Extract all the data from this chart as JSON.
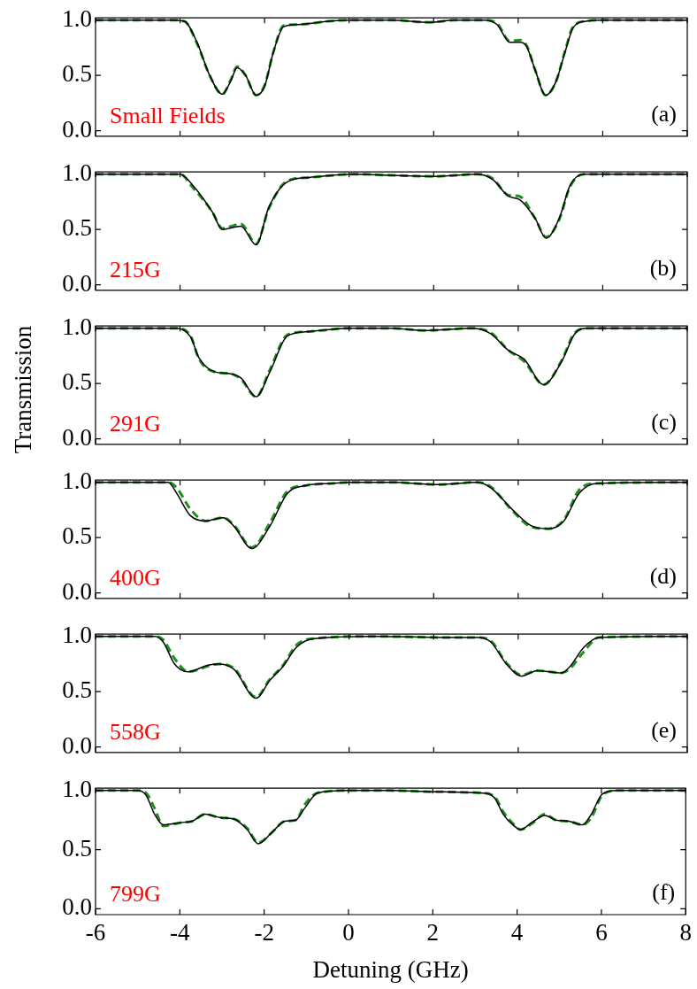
{
  "chart_data": [
    {
      "type": "line",
      "annotations": [
        "Small Fields",
        "(a)"
      ],
      "xlim": [
        -6,
        8
      ],
      "xticks": [
        -6,
        -4,
        -2,
        0,
        2,
        4,
        6,
        8
      ],
      "ylim": [
        -0.05,
        1.02
      ],
      "yticks": [
        {
          "value": 0,
          "label": "0.0"
        },
        {
          "value": 0.5,
          "label": "0.5"
        },
        {
          "value": 1,
          "label": "1.0"
        }
      ],
      "tick_labels": "y",
      "marker": "none",
      "series": [
        {
          "color": "#000000",
          "line_style": "solid",
          "x": [
            -6,
            -4.2,
            -3.9,
            -3.6,
            -3.3,
            -3.0,
            -2.8,
            -2.65,
            -2.45,
            -2.2,
            -2.0,
            -1.8,
            -1.55,
            -1.2,
            -0.5,
            0,
            1,
            1.9,
            2.5,
            3.2,
            3.5,
            3.8,
            4.05,
            4.2,
            4.4,
            4.65,
            4.9,
            5.1,
            5.3,
            5.6,
            6,
            8
          ],
          "values": [
            1,
            1,
            0.99,
            0.8,
            0.5,
            0.33,
            0.45,
            0.57,
            0.5,
            0.32,
            0.4,
            0.7,
            0.94,
            0.96,
            0.99,
            1,
            1,
            0.98,
            1,
            1,
            0.96,
            0.8,
            0.8,
            0.76,
            0.55,
            0.32,
            0.45,
            0.7,
            0.93,
            0.99,
            1,
            1
          ]
        },
        {
          "color": "#1f8f1f",
          "line_style": "dashed",
          "x": [
            -6,
            -4.2,
            -3.9,
            -3.6,
            -3.3,
            -3.0,
            -2.8,
            -2.65,
            -2.45,
            -2.2,
            -2.0,
            -1.8,
            -1.55,
            -1.2,
            -0.5,
            0,
            1,
            1.9,
            2.5,
            3.2,
            3.5,
            3.8,
            4.05,
            4.2,
            4.4,
            4.65,
            4.9,
            5.1,
            5.3,
            5.6,
            6,
            8
          ],
          "values": [
            1,
            1,
            0.99,
            0.79,
            0.5,
            0.33,
            0.46,
            0.58,
            0.5,
            0.32,
            0.41,
            0.7,
            0.95,
            0.96,
            0.99,
            1,
            1,
            0.98,
            1,
            1,
            0.97,
            0.81,
            0.82,
            0.77,
            0.55,
            0.32,
            0.45,
            0.71,
            0.94,
            0.99,
            1,
            1
          ]
        }
      ]
    },
    {
      "type": "line",
      "annotations": [
        "215G",
        "(b)"
      ],
      "xlim": [
        -6,
        8
      ],
      "xticks": [
        -6,
        -4,
        -2,
        0,
        2,
        4,
        6,
        8
      ],
      "ylim": [
        -0.05,
        1.02
      ],
      "yticks": [
        {
          "value": 0,
          "label": "0.0"
        },
        {
          "value": 0.5,
          "label": "0.5"
        },
        {
          "value": 1,
          "label": "1.0"
        }
      ],
      "tick_labels": "y",
      "marker": "none",
      "series": [
        {
          "color": "#000000",
          "line_style": "solid",
          "x": [
            -6,
            -4.0,
            -3.7,
            -3.24,
            -3.0,
            -2.56,
            -2.2,
            -1.9,
            -1.46,
            -0.94,
            0.1,
            1,
            2,
            3.04,
            3.4,
            3.77,
            4.03,
            4.4,
            4.66,
            4.97,
            5.23,
            5.55,
            6,
            8
          ],
          "values": [
            1,
            1,
            0.9,
            0.66,
            0.5,
            0.53,
            0.36,
            0.7,
            0.93,
            0.97,
            1,
            0.99,
            0.98,
            1,
            0.95,
            0.8,
            0.77,
            0.6,
            0.42,
            0.6,
            0.9,
            1,
            1,
            1
          ]
        },
        {
          "color": "#1f8f1f",
          "line_style": "dashed",
          "x": [
            -6,
            -4.0,
            -3.7,
            -3.24,
            -3.0,
            -2.56,
            -2.2,
            -1.9,
            -1.46,
            -0.94,
            0.1,
            1,
            2,
            3.04,
            3.4,
            3.77,
            4.03,
            4.4,
            4.66,
            4.97,
            5.23,
            5.55,
            6,
            8
          ],
          "values": [
            1,
            1,
            0.88,
            0.66,
            0.51,
            0.55,
            0.37,
            0.69,
            0.94,
            0.97,
            1,
            0.99,
            0.98,
            1,
            0.96,
            0.81,
            0.8,
            0.6,
            0.43,
            0.59,
            0.89,
            1,
            1,
            1
          ]
        }
      ]
    },
    {
      "type": "line",
      "annotations": [
        "291G",
        "(c)"
      ],
      "ylabel": "Transmission",
      "xlim": [
        -6,
        8
      ],
      "xticks": [
        -6,
        -4,
        -2,
        0,
        2,
        4,
        6,
        8
      ],
      "ylim": [
        -0.05,
        1.02
      ],
      "yticks": [
        {
          "value": 0,
          "label": "0.0"
        },
        {
          "value": 0.5,
          "label": "0.5"
        },
        {
          "value": 1,
          "label": "1.0"
        }
      ],
      "tick_labels": "y",
      "marker": "none",
      "series": [
        {
          "color": "#000000",
          "line_style": "solid",
          "x": [
            -6,
            -4.08,
            -3.75,
            -3.55,
            -3.13,
            -2.82,
            -2.56,
            -2.2,
            -1.88,
            -1.46,
            -0.94,
            0,
            1,
            1.78,
            2.93,
            3.35,
            3.77,
            4.14,
            4.6,
            5.03,
            5.34,
            5.65,
            6,
            8
          ],
          "values": [
            1,
            1,
            0.92,
            0.73,
            0.6,
            0.59,
            0.55,
            0.38,
            0.6,
            0.93,
            0.97,
            1,
            1,
            0.98,
            1,
            0.95,
            0.8,
            0.72,
            0.49,
            0.7,
            0.95,
            1,
            1,
            1
          ]
        },
        {
          "color": "#1f8f1f",
          "line_style": "dashed",
          "x": [
            -6,
            -4.08,
            -3.75,
            -3.55,
            -3.13,
            -2.82,
            -2.56,
            -2.2,
            -1.88,
            -1.46,
            -0.94,
            0,
            1,
            1.78,
            2.93,
            3.35,
            3.77,
            4.14,
            4.6,
            5.03,
            5.34,
            5.65,
            6,
            8
          ],
          "values": [
            1,
            1,
            0.93,
            0.72,
            0.6,
            0.59,
            0.54,
            0.38,
            0.62,
            0.94,
            0.97,
            1,
            1,
            0.98,
            1,
            0.96,
            0.8,
            0.7,
            0.49,
            0.71,
            0.96,
            1,
            1,
            1
          ]
        }
      ]
    },
    {
      "type": "line",
      "annotations": [
        "400G",
        "(d)"
      ],
      "xlim": [
        -6,
        8
      ],
      "xticks": [
        -6,
        -4,
        -2,
        0,
        2,
        4,
        6,
        8
      ],
      "ylim": [
        -0.05,
        1.02
      ],
      "yticks": [
        {
          "value": 0,
          "label": "0.0"
        },
        {
          "value": 0.5,
          "label": "0.5"
        },
        {
          "value": 1,
          "label": "1.0"
        }
      ],
      "tick_labels": "y",
      "marker": "none",
      "series": [
        {
          "color": "#000000",
          "line_style": "solid",
          "x": [
            -6,
            -4.28,
            -4.08,
            -3.76,
            -3.4,
            -2.98,
            -2.72,
            -2.3,
            -1.88,
            -1.46,
            -1.04,
            -0.4,
            0.1,
            1,
            2.1,
            3.04,
            3.35,
            3.87,
            4.29,
            4.71,
            5.08,
            5.44,
            5.86,
            8
          ],
          "values": [
            1,
            1,
            0.9,
            0.7,
            0.65,
            0.68,
            0.6,
            0.4,
            0.6,
            0.9,
            0.97,
            0.99,
            1,
            1,
            0.98,
            1,
            0.95,
            0.75,
            0.61,
            0.58,
            0.65,
            0.9,
            0.99,
            1
          ]
        },
        {
          "color": "#1f8f1f",
          "line_style": "dashed",
          "x": [
            -6,
            -4.28,
            -4.08,
            -3.76,
            -3.4,
            -2.98,
            -2.72,
            -2.3,
            -1.88,
            -1.46,
            -1.04,
            -0.4,
            0.1,
            1,
            2.1,
            3.04,
            3.35,
            3.87,
            4.29,
            4.71,
            5.08,
            5.44,
            5.86,
            8
          ],
          "values": [
            1,
            1,
            0.95,
            0.76,
            0.65,
            0.68,
            0.61,
            0.41,
            0.63,
            0.92,
            0.97,
            0.99,
            1,
            1,
            0.98,
            1,
            0.96,
            0.74,
            0.6,
            0.58,
            0.66,
            0.93,
            0.99,
            1
          ]
        }
      ]
    },
    {
      "type": "line",
      "annotations": [
        "558G",
        "(e)"
      ],
      "xlim": [
        -6,
        8
      ],
      "xticks": [
        -6,
        -4,
        -2,
        0,
        2,
        4,
        6,
        8
      ],
      "ylim": [
        -0.05,
        1.02
      ],
      "yticks": [
        {
          "value": 0,
          "label": "0.0"
        },
        {
          "value": 0.5,
          "label": "0.5"
        },
        {
          "value": 1,
          "label": "1.0"
        }
      ],
      "tick_labels": "y",
      "marker": "none",
      "series": [
        {
          "color": "#000000",
          "line_style": "solid",
          "x": [
            -6,
            -4.6,
            -4.4,
            -4.13,
            -3.81,
            -3.34,
            -3.08,
            -2.72,
            -2.2,
            -1.88,
            -1.56,
            -1.25,
            -0.83,
            0.63,
            2.2,
            3.04,
            3.35,
            3.72,
            4.08,
            4.45,
            5.03,
            5.23,
            5.55,
            5.91,
            8
          ],
          "values": [
            1,
            1,
            0.95,
            0.75,
            0.68,
            0.74,
            0.75,
            0.7,
            0.44,
            0.6,
            0.73,
            0.9,
            0.98,
            1,
            0.99,
            0.99,
            0.95,
            0.75,
            0.64,
            0.69,
            0.67,
            0.73,
            0.9,
            0.99,
            1
          ]
        },
        {
          "color": "#1f8f1f",
          "line_style": "dashed",
          "x": [
            -6,
            -4.6,
            -4.4,
            -4.13,
            -3.81,
            -3.34,
            -3.08,
            -2.72,
            -2.2,
            -1.88,
            -1.56,
            -1.25,
            -0.83,
            0.63,
            2.2,
            3.04,
            3.35,
            3.72,
            4.08,
            4.45,
            5.03,
            5.23,
            5.55,
            5.91,
            8
          ],
          "values": [
            1,
            1,
            0.97,
            0.8,
            0.68,
            0.73,
            0.75,
            0.71,
            0.45,
            0.61,
            0.74,
            0.92,
            0.98,
            1,
            0.99,
            0.99,
            0.96,
            0.76,
            0.65,
            0.69,
            0.67,
            0.71,
            0.86,
            0.99,
            1
          ]
        }
      ]
    },
    {
      "type": "line",
      "annotations": [
        "799G",
        "(f)"
      ],
      "xlabel": "Detuning (GHz)",
      "xlim": [
        -6,
        8
      ],
      "xticks": [
        -6,
        -4,
        -2,
        0,
        2,
        4,
        6,
        8
      ],
      "ylim": [
        -0.05,
        1.02
      ],
      "yticks": [
        {
          "value": 0,
          "label": "0.0"
        },
        {
          "value": 0.5,
          "label": "0.5"
        },
        {
          "value": 1,
          "label": "1.0"
        }
      ],
      "marker": "none",
      "series": [
        {
          "color": "#000000",
          "line_style": "solid",
          "x": [
            -6,
            -5.0,
            -4.8,
            -4.6,
            -4.39,
            -3.97,
            -3.71,
            -3.4,
            -3.03,
            -2.72,
            -2.4,
            -2.14,
            -1.83,
            -1.51,
            -1.25,
            -1.04,
            -0.73,
            0,
            1,
            2,
            3.14,
            3.46,
            3.67,
            3.93,
            4.08,
            4.35,
            4.66,
            4.92,
            5.23,
            5.55,
            5.76,
            6.02,
            6.38,
            8
          ],
          "values": [
            1,
            1,
            0.96,
            0.8,
            0.71,
            0.73,
            0.74,
            0.8,
            0.77,
            0.76,
            0.67,
            0.55,
            0.64,
            0.74,
            0.75,
            0.85,
            0.98,
            1,
            1,
            0.99,
            0.98,
            0.94,
            0.8,
            0.7,
            0.67,
            0.73,
            0.79,
            0.75,
            0.74,
            0.71,
            0.8,
            0.97,
            1,
            1
          ]
        },
        {
          "color": "#1f8f1f",
          "line_style": "dashed",
          "x": [
            -6,
            -5.0,
            -4.8,
            -4.6,
            -4.39,
            -3.97,
            -3.71,
            -3.4,
            -3.03,
            -2.72,
            -2.4,
            -2.14,
            -1.83,
            -1.51,
            -1.25,
            -1.04,
            -0.73,
            0,
            1,
            2,
            3.14,
            3.46,
            3.67,
            3.93,
            4.08,
            4.35,
            4.66,
            4.92,
            5.23,
            5.55,
            5.76,
            6.02,
            6.38,
            8
          ],
          "values": [
            1,
            1,
            0.98,
            0.85,
            0.7,
            0.73,
            0.74,
            0.8,
            0.77,
            0.76,
            0.68,
            0.56,
            0.64,
            0.74,
            0.75,
            0.88,
            0.98,
            1,
            1,
            0.99,
            0.98,
            0.95,
            0.82,
            0.71,
            0.67,
            0.72,
            0.8,
            0.75,
            0.74,
            0.71,
            0.77,
            0.96,
            1,
            1
          ]
        }
      ]
    }
  ]
}
